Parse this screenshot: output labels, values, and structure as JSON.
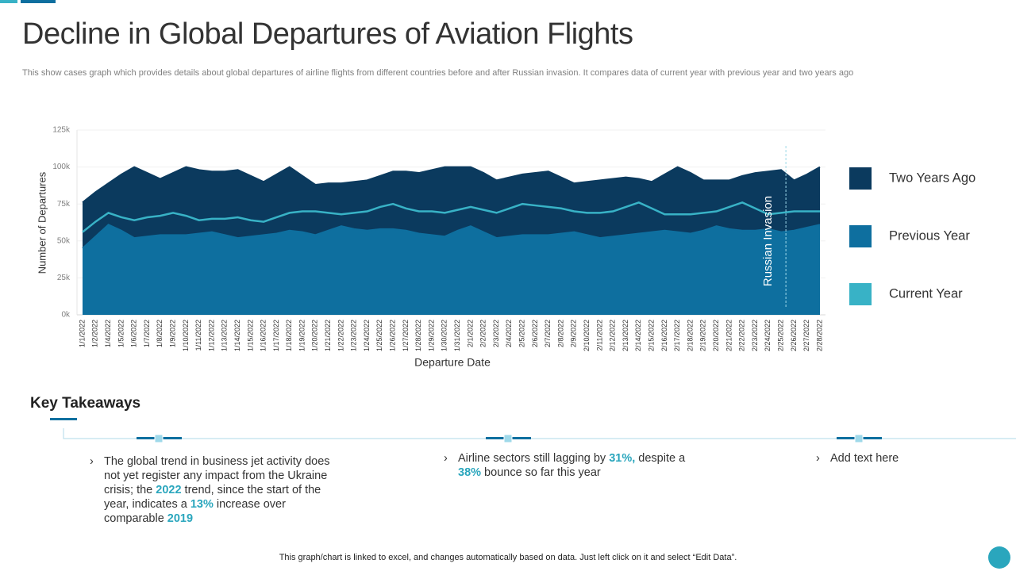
{
  "header": {
    "title": "Decline in Global Departures of Aviation Flights",
    "subtitle": "This  show cases graph which provides details about global departures of airline flights from different countries before and after Russian invasion. It compares data of current year with previous year and two years ago"
  },
  "chart_data": {
    "type": "area",
    "y_label": "Number of Departures",
    "x_label": "Departure Date",
    "legend": "right",
    "grid": true,
    "categories": [
      "1/1/2022",
      "1/2/2022",
      "1/4/2022",
      "1/5/2022",
      "1/6/2022",
      "1/7/2022",
      "1/8/2022",
      "1/9/2022",
      "1/10/2022",
      "1/11/2022",
      "1/12/2022",
      "1/13/2022",
      "1/14/2022",
      "1/15/2022",
      "1/16/2022",
      "1/17/2022",
      "1/18/2022",
      "1/19/2022",
      "1/20/2022",
      "1/21/2022",
      "1/22/2022",
      "1/23/2022",
      "1/24/2022",
      "1/25/2022",
      "1/26/2022",
      "1/27/2022",
      "1/28/2022",
      "1/29/2022",
      "1/30/2022",
      "1/31/2022",
      "2/1/2022",
      "2/2/2022",
      "2/3/2022",
      "2/4/2022",
      "2/5/2022",
      "2/6/2022",
      "2/7/2022",
      "2/8/2022",
      "2/9/2022",
      "2/10/2022",
      "2/11/2022",
      "2/12/2022",
      "2/13/2022",
      "2/14/2022",
      "2/15/2022",
      "2/16/2022",
      "2/17/2022",
      "2/18/2022",
      "2/19/2022",
      "2/20/2022",
      "2/21/2022",
      "2/22/2022",
      "2/23/2022",
      "2/24/2022",
      "2/25/2022",
      "2/26/2022",
      "2/27/2022",
      "2/28/2022"
    ],
    "ylim": [
      0,
      125000
    ],
    "yticks": [
      {
        "value": 0,
        "label": "0k"
      },
      {
        "value": 25000,
        "label": "25k"
      },
      {
        "value": 50000,
        "label": "50k"
      },
      {
        "value": 75000,
        "label": "75k"
      },
      {
        "value": 100000,
        "label": "100k"
      },
      {
        "value": 125000,
        "label": "125k"
      }
    ],
    "series": [
      {
        "name": "Two Years Ago",
        "type": "area",
        "color": "#0b3a5e",
        "values": [
          76000,
          83000,
          89000,
          95000,
          100000,
          96000,
          92000,
          96000,
          100000,
          98000,
          97000,
          97000,
          98000,
          94000,
          90000,
          95000,
          100000,
          94000,
          88000,
          89000,
          89000,
          90000,
          91000,
          94000,
          97000,
          97000,
          96000,
          98000,
          100000,
          100000,
          100000,
          96000,
          91000,
          93000,
          95000,
          96000,
          97000,
          93000,
          89000,
          90000,
          91000,
          92000,
          93000,
          92000,
          90000,
          95000,
          100000,
          96000,
          91000,
          91000,
          91000,
          94000,
          96000,
          97000,
          98000,
          91000,
          95000,
          100000
        ]
      },
      {
        "name": "Previous Year",
        "type": "area",
        "color": "#0e6f9f",
        "values": [
          45000,
          53000,
          61000,
          57000,
          52000,
          53000,
          54000,
          54000,
          54000,
          55000,
          56000,
          54000,
          52000,
          53000,
          54000,
          55000,
          57000,
          56000,
          54000,
          57000,
          60000,
          58000,
          57000,
          58000,
          58000,
          57000,
          55000,
          54000,
          53000,
          57000,
          60000,
          56000,
          52000,
          53000,
          54000,
          54000,
          54000,
          55000,
          56000,
          54000,
          52000,
          53000,
          54000,
          55000,
          56000,
          57000,
          56000,
          55000,
          57000,
          60000,
          58000,
          57000,
          57000,
          58000,
          56000,
          57000,
          59000,
          61000
        ]
      },
      {
        "name": "Current Year",
        "type": "line",
        "color": "#38b2c6",
        "values": [
          56000,
          63000,
          69000,
          66000,
          64000,
          66000,
          67000,
          69000,
          67000,
          64000,
          65000,
          65000,
          66000,
          64000,
          63000,
          66000,
          69000,
          70000,
          70000,
          69000,
          68000,
          69000,
          70000,
          73000,
          75000,
          72000,
          70000,
          70000,
          69000,
          71000,
          73000,
          71000,
          69000,
          72000,
          75000,
          74000,
          73000,
          72000,
          70000,
          69000,
          69000,
          70000,
          73000,
          76000,
          72000,
          68000,
          68000,
          68000,
          69000,
          70000,
          73000,
          76000,
          72000,
          68000,
          69000,
          70000,
          70000,
          70000
        ]
      }
    ],
    "annotation": {
      "text": "Russian Invasion",
      "x": "2/25/2022"
    }
  },
  "takeaways": {
    "title": "Key Takeaways",
    "items": [
      {
        "segments": [
          {
            "text": "The global trend in business jet activity does not yet register any impact from the Ukraine crisis; the ",
            "highlight": false
          },
          {
            "text": "2022",
            "highlight": true
          },
          {
            "text": " trend, since the start of the year, indicates a ",
            "highlight": false
          },
          {
            "text": "13%",
            "highlight": true
          },
          {
            "text": " increase over comparable ",
            "highlight": false
          },
          {
            "text": "2019",
            "highlight": true
          }
        ]
      },
      {
        "segments": [
          {
            "text": "Airline sectors still lagging by ",
            "highlight": false
          },
          {
            "text": "31%,",
            "highlight": true
          },
          {
            "text": " despite a ",
            "highlight": false
          },
          {
            "text": "38%",
            "highlight": true
          },
          {
            "text": " bounce so far this year",
            "highlight": false
          }
        ]
      },
      {
        "segments": [
          {
            "text": "Add text here",
            "highlight": false
          }
        ]
      }
    ]
  },
  "footer": "This graph/chart is linked to excel, and changes automatically based on data. Just left click on it and select “Edit Data”."
}
